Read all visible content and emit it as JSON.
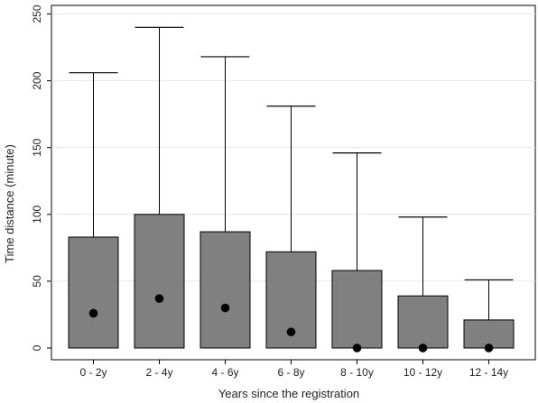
{
  "chart_data": {
    "type": "box",
    "title": "",
    "xlabel": "Years since the registration",
    "ylabel": "Time distance (minute)",
    "ylim": [
      0,
      250
    ],
    "yticks": [
      0,
      50,
      100,
      150,
      200,
      250
    ],
    "grid": true,
    "legend": "none",
    "categories": [
      "0 - 2y",
      "2 - 4y",
      "4 - 6y",
      "6 - 8y",
      "8 - 10y",
      "10 - 12y",
      "12 - 14y"
    ],
    "series": [
      {
        "box_low": [
          0,
          0,
          0,
          0,
          0,
          0,
          0
        ],
        "box_high": [
          83,
          100,
          87,
          72,
          58,
          39,
          21
        ],
        "whisker_high": [
          206,
          240,
          218,
          181,
          146,
          98,
          51
        ],
        "median": [
          26,
          37,
          30,
          12,
          0,
          0,
          0
        ]
      }
    ],
    "colors": {
      "box": "#808080",
      "outline": "#000000",
      "grid": "#e6e6e6",
      "point": "#000000"
    }
  }
}
